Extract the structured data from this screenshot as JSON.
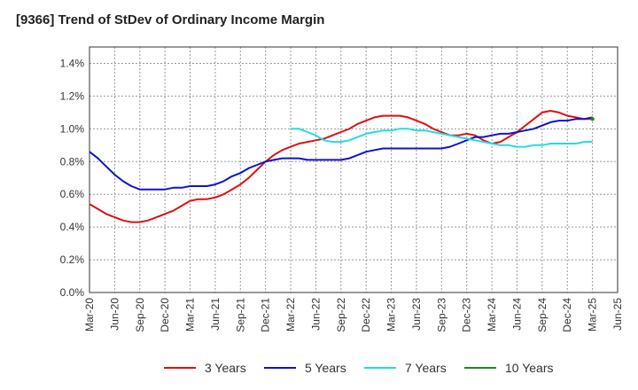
{
  "chart_data": {
    "type": "line",
    "title": "[9366]  Trend of StDev of Ordinary Income Margin",
    "xlabel": "",
    "ylabel": "",
    "x_ticks": [
      "Mar-20",
      "Jun-20",
      "Sep-20",
      "Dec-20",
      "Mar-21",
      "Jun-21",
      "Sep-21",
      "Dec-21",
      "Mar-22",
      "Jun-22",
      "Sep-22",
      "Dec-22",
      "Mar-23",
      "Jun-23",
      "Sep-23",
      "Dec-23",
      "Mar-24",
      "Jun-24",
      "Sep-24",
      "Dec-24",
      "Mar-25",
      "Jun-25"
    ],
    "y_ticks": [
      "0.0%",
      "0.2%",
      "0.4%",
      "0.6%",
      "0.8%",
      "1.0%",
      "1.2%",
      "1.4%"
    ],
    "ylim": [
      0,
      1.5
    ],
    "y_unit": "%",
    "grid": true,
    "legend_position": "bottom",
    "series": [
      {
        "name": "3 Years",
        "color": "#dd1111",
        "x": [
          "Mar-20",
          "Apr-20",
          "May-20",
          "Jun-20",
          "Jul-20",
          "Aug-20",
          "Sep-20",
          "Oct-20",
          "Nov-20",
          "Dec-20",
          "Jan-21",
          "Feb-21",
          "Mar-21",
          "Apr-21",
          "May-21",
          "Jun-21",
          "Jul-21",
          "Aug-21",
          "Sep-21",
          "Oct-21",
          "Nov-21",
          "Dec-21",
          "Jan-22",
          "Feb-22",
          "Mar-22",
          "Apr-22",
          "May-22",
          "Jun-22",
          "Jul-22",
          "Aug-22",
          "Sep-22",
          "Oct-22",
          "Nov-22",
          "Dec-22",
          "Jan-23",
          "Feb-23",
          "Mar-23",
          "Apr-23",
          "May-23",
          "Jun-23",
          "Jul-23",
          "Aug-23",
          "Sep-23",
          "Oct-23",
          "Nov-23",
          "Dec-23",
          "Jan-24",
          "Feb-24",
          "Mar-24",
          "Apr-24",
          "May-24",
          "Jun-24",
          "Jul-24",
          "Aug-24",
          "Sep-24",
          "Oct-24",
          "Nov-24",
          "Dec-24",
          "Jan-25",
          "Feb-25",
          "Mar-25"
        ],
        "values": [
          0.54,
          0.51,
          0.48,
          0.46,
          0.44,
          0.43,
          0.43,
          0.44,
          0.46,
          0.48,
          0.5,
          0.53,
          0.56,
          0.57,
          0.57,
          0.58,
          0.6,
          0.63,
          0.66,
          0.7,
          0.75,
          0.8,
          0.84,
          0.87,
          0.89,
          0.91,
          0.92,
          0.93,
          0.94,
          0.96,
          0.98,
          1.0,
          1.03,
          1.05,
          1.07,
          1.08,
          1.08,
          1.08,
          1.07,
          1.05,
          1.03,
          1.0,
          0.98,
          0.96,
          0.96,
          0.97,
          0.96,
          0.93,
          0.91,
          0.92,
          0.95,
          0.98,
          1.02,
          1.06,
          1.1,
          1.11,
          1.1,
          1.08,
          1.07,
          1.06,
          1.06
        ]
      },
      {
        "name": "5 Years",
        "color": "#1111cc",
        "x": [
          "Mar-20",
          "Apr-20",
          "May-20",
          "Jun-20",
          "Jul-20",
          "Aug-20",
          "Sep-20",
          "Oct-20",
          "Nov-20",
          "Dec-20",
          "Jan-21",
          "Feb-21",
          "Mar-21",
          "Apr-21",
          "May-21",
          "Jun-21",
          "Jul-21",
          "Aug-21",
          "Sep-21",
          "Oct-21",
          "Nov-21",
          "Dec-21",
          "Jan-22",
          "Feb-22",
          "Mar-22",
          "Apr-22",
          "May-22",
          "Jun-22",
          "Jul-22",
          "Aug-22",
          "Sep-22",
          "Oct-22",
          "Nov-22",
          "Dec-22",
          "Jan-23",
          "Feb-23",
          "Mar-23",
          "Apr-23",
          "May-23",
          "Jun-23",
          "Jul-23",
          "Aug-23",
          "Sep-23",
          "Oct-23",
          "Nov-23",
          "Dec-23",
          "Jan-24",
          "Feb-24",
          "Mar-24",
          "Apr-24",
          "May-24",
          "Jun-24",
          "Jul-24",
          "Aug-24",
          "Sep-24",
          "Oct-24",
          "Nov-24",
          "Dec-24",
          "Jan-25",
          "Feb-25",
          "Mar-25"
        ],
        "values": [
          0.86,
          0.82,
          0.77,
          0.72,
          0.68,
          0.65,
          0.63,
          0.63,
          0.63,
          0.63,
          0.64,
          0.64,
          0.65,
          0.65,
          0.65,
          0.66,
          0.68,
          0.71,
          0.73,
          0.76,
          0.78,
          0.8,
          0.81,
          0.82,
          0.82,
          0.82,
          0.81,
          0.81,
          0.81,
          0.81,
          0.81,
          0.82,
          0.84,
          0.86,
          0.87,
          0.88,
          0.88,
          0.88,
          0.88,
          0.88,
          0.88,
          0.88,
          0.88,
          0.89,
          0.91,
          0.93,
          0.95,
          0.95,
          0.96,
          0.97,
          0.97,
          0.98,
          0.99,
          1.0,
          1.02,
          1.04,
          1.05,
          1.05,
          1.06,
          1.06,
          1.07
        ]
      },
      {
        "name": "7 Years",
        "color": "#22dddd",
        "x": [
          "Mar-22",
          "Apr-22",
          "May-22",
          "Jun-22",
          "Jul-22",
          "Aug-22",
          "Sep-22",
          "Oct-22",
          "Nov-22",
          "Dec-22",
          "Jan-23",
          "Feb-23",
          "Mar-23",
          "Apr-23",
          "May-23",
          "Jun-23",
          "Jul-23",
          "Aug-23",
          "Sep-23",
          "Oct-23",
          "Nov-23",
          "Dec-23",
          "Jan-24",
          "Feb-24",
          "Mar-24",
          "Apr-24",
          "May-24",
          "Jun-24",
          "Jul-24",
          "Aug-24",
          "Sep-24",
          "Oct-24",
          "Nov-24",
          "Dec-24",
          "Jan-25",
          "Feb-25",
          "Mar-25"
        ],
        "values": [
          1.0,
          1.0,
          0.98,
          0.96,
          0.93,
          0.92,
          0.92,
          0.93,
          0.95,
          0.97,
          0.98,
          0.99,
          0.99,
          1.0,
          1.0,
          0.99,
          0.99,
          0.98,
          0.97,
          0.96,
          0.95,
          0.94,
          0.93,
          0.92,
          0.91,
          0.9,
          0.9,
          0.89,
          0.89,
          0.9,
          0.9,
          0.91,
          0.91,
          0.91,
          0.91,
          0.92,
          0.92
        ]
      },
      {
        "name": "10 Years",
        "color": "#228822",
        "x": [
          "Mar-25"
        ],
        "values": [
          1.06
        ]
      }
    ]
  }
}
